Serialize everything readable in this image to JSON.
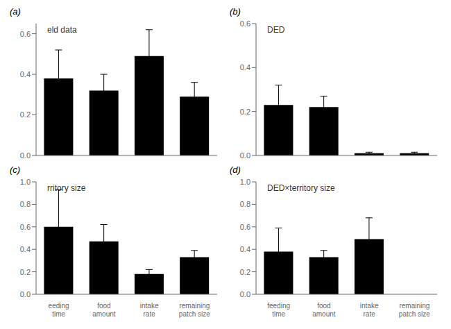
{
  "chart_data": [
    {
      "type": "bar",
      "title": "eld data",
      "annotations": [
        "(a)"
      ],
      "categories": [
        null,
        null,
        null,
        null
      ],
      "values": [
        0.38,
        0.32,
        0.49,
        0.29
      ],
      "errors": [
        0.14,
        0.08,
        0.13,
        0.07
      ],
      "color": "#000000",
      "ylim": [
        0,
        0.65
      ],
      "yticks": [
        {
          "value": 0,
          "label": "0.0"
        },
        0.2,
        0.4,
        0.6
      ]
    },
    {
      "type": "bar",
      "title": "DED",
      "annotations": [
        "(b)"
      ],
      "categories": [
        null,
        null,
        null,
        null
      ],
      "values": [
        0.23,
        0.22,
        0.01,
        0.01
      ],
      "errors": [
        0.09,
        0.05,
        0.005,
        0.005
      ],
      "color": "#000000",
      "ylim": [
        0,
        0.6
      ],
      "yticks": [
        {
          "value": 0,
          "label": "0.0"
        },
        0.2,
        0.4,
        0.6
      ]
    },
    {
      "type": "bar",
      "title": "rritory size",
      "annotations": [
        "(c)"
      ],
      "categories": [
        "eeding\ntime",
        "food\namount",
        "intake\nrate",
        "remaining\npatch size"
      ],
      "values": [
        0.6,
        0.47,
        0.18,
        0.33
      ],
      "errors": [
        0.33,
        0.15,
        0.04,
        0.06
      ],
      "color": "#000000",
      "ylim": [
        0,
        1.0
      ],
      "yticks": [
        {
          "value": 0,
          "label": "0.0"
        },
        0.2,
        0.4,
        0.6,
        0.8,
        {
          "value": 1.0,
          "label": "1.0"
        }
      ]
    },
    {
      "type": "bar",
      "title": "DED×territory size",
      "annotations": [
        "(d)"
      ],
      "categories": [
        "feeding\ntime",
        "food\namount",
        "intake\nrate",
        "remaining\npatch size"
      ],
      "values": [
        0.38,
        0.33,
        0.49,
        0.0
      ],
      "errors": [
        0.21,
        0.06,
        0.19,
        0.0
      ],
      "color": "#000000",
      "ylim": [
        0,
        1.0
      ],
      "yticks": [
        {
          "value": 0,
          "label": "0.0"
        },
        0.2,
        0.4,
        0.6,
        0.8,
        {
          "value": 1.0,
          "label": "1.0"
        }
      ]
    }
  ]
}
